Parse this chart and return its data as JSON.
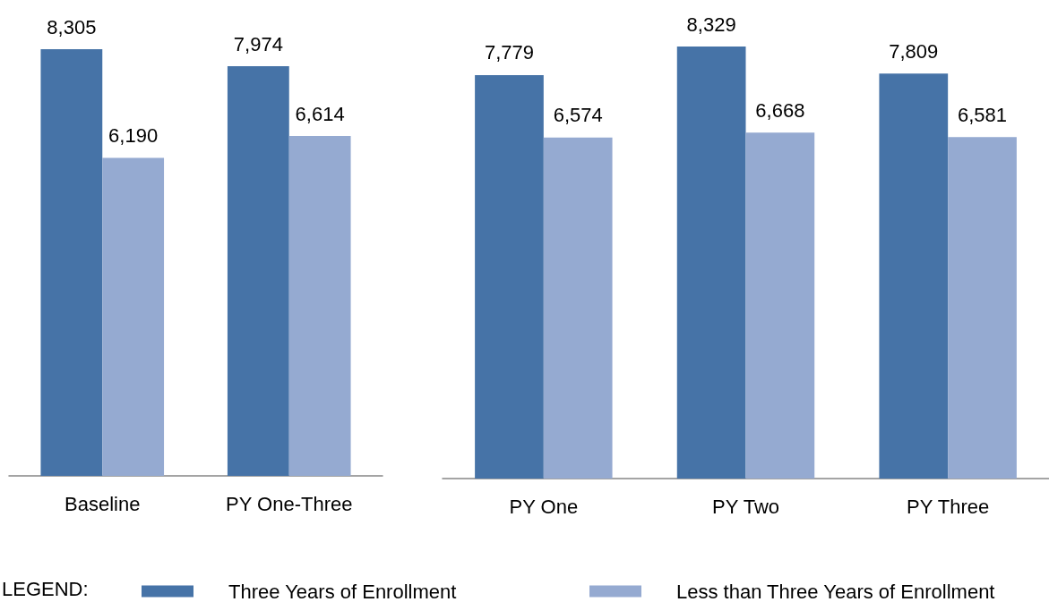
{
  "chart_data": [
    {
      "type": "bar",
      "categories": [
        "Baseline",
        "PY One-Three"
      ],
      "series": [
        {
          "color": "#4673a7",
          "values": [
            8305,
            7974
          ],
          "value_labels": [
            "8,305",
            "7,974"
          ]
        },
        {
          "color": "#95aad1",
          "values": [
            6190,
            6614
          ],
          "value_labels": [
            "6,190",
            "6,614"
          ]
        }
      ],
      "tick_labels": "x"
    },
    {
      "type": "bar",
      "categories": [
        "PY One",
        "PY Two",
        "PY Three"
      ],
      "series": [
        {
          "name": "Three Years of Enrollment",
          "color": "#4673a7",
          "values": [
            7779,
            8329,
            7809
          ],
          "value_labels": [
            "7,779",
            "8,329",
            "7,809"
          ]
        },
        {
          "name": "Less than Three Years of Enrollment",
          "color": "#95aad1",
          "values": [
            6574,
            6668,
            6581
          ],
          "value_labels": [
            "6,574",
            "6,668",
            "6,581"
          ]
        }
      ],
      "tick_labels": "x",
      "legend": "bottom",
      "legend_title": "LEGEND:"
    }
  ]
}
